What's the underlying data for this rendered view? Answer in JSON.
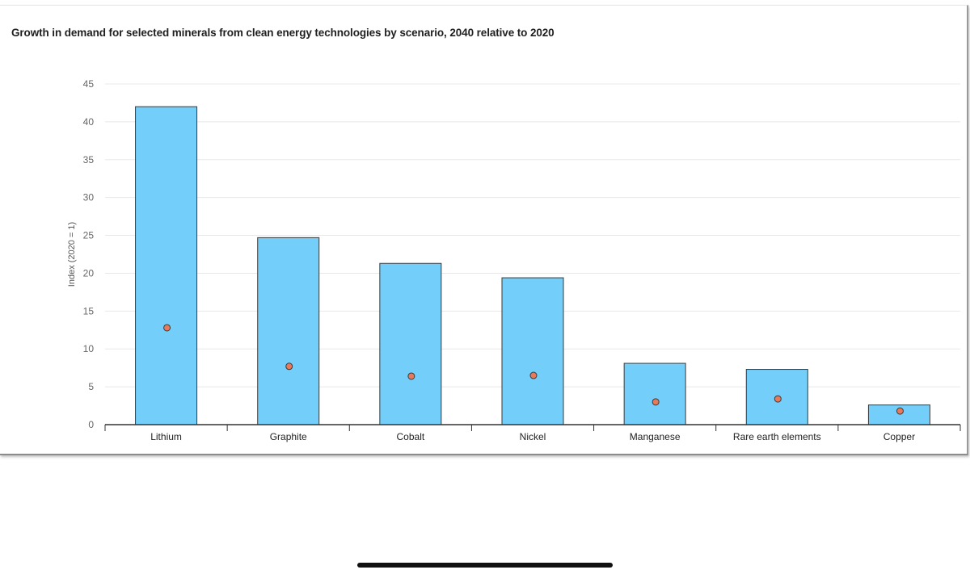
{
  "chart_data": {
    "type": "bar",
    "title": "Growth in demand for selected minerals from clean energy technologies by scenario, 2040 relative to 2020",
    "xlabel": "",
    "ylabel": "Index (2020 = 1)",
    "ylim": [
      0,
      45
    ],
    "yticks": [
      0,
      5,
      10,
      15,
      20,
      25,
      30,
      35,
      40,
      45
    ],
    "grid": true,
    "categories": [
      "Lithium",
      "Graphite",
      "Cobalt",
      "Nickel",
      "Manganese",
      "Rare earth elements",
      "Copper"
    ],
    "series": [
      {
        "name": "Bars",
        "kind": "bar",
        "color": "#73cffa",
        "values": [
          42,
          24.7,
          21.3,
          19.4,
          8.1,
          7.3,
          2.6
        ]
      },
      {
        "name": "Points",
        "kind": "point",
        "color": "#e8795a",
        "values": [
          12.8,
          7.7,
          6.4,
          6.5,
          3.0,
          3.4,
          1.8
        ]
      }
    ]
  },
  "colors": {
    "bar_fill": "#73cffa",
    "bar_stroke": "#3a3a3a",
    "point_fill": "#e8795a",
    "grid": "#e8e8e8",
    "axis": "#333333"
  }
}
